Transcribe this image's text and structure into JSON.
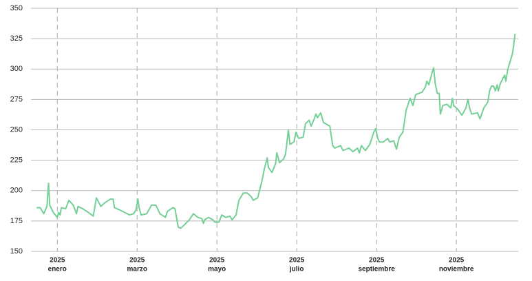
{
  "chart_data": {
    "type": "line",
    "color": "#74cf97",
    "grid": true,
    "xlim": [
      0.34,
      12.55
    ],
    "ylim": [
      150,
      350
    ],
    "yticks": [
      150,
      175,
      200,
      225,
      250,
      275,
      300,
      325,
      350
    ],
    "xticks": [
      {
        "value": 1,
        "label": [
          "2025",
          "enero"
        ]
      },
      {
        "value": 3,
        "label": [
          "2025",
          "marzo"
        ]
      },
      {
        "value": 5,
        "label": [
          "2025",
          "mayo"
        ]
      },
      {
        "value": 7,
        "label": [
          "2025",
          "julio"
        ]
      },
      {
        "value": 9,
        "label": [
          "2025",
          "septiembre"
        ]
      },
      {
        "value": 11,
        "label": [
          "2025",
          "noviembre"
        ]
      }
    ],
    "x": [
      0.48,
      0.57,
      0.66,
      0.74,
      0.78,
      0.81,
      0.9,
      1.0,
      1.03,
      1.07,
      1.1,
      1.21,
      1.29,
      1.4,
      1.48,
      1.52,
      1.64,
      1.78,
      1.9,
      1.98,
      2.09,
      2.19,
      2.33,
      2.4,
      2.43,
      2.57,
      2.69,
      2.81,
      2.91,
      2.97,
      3.02,
      3.05,
      3.1,
      3.24,
      3.36,
      3.47,
      3.57,
      3.71,
      3.76,
      3.9,
      3.95,
      4.03,
      4.09,
      4.19,
      4.31,
      4.41,
      4.52,
      4.62,
      4.66,
      4.69,
      4.79,
      4.9,
      4.95,
      5.05,
      5.12,
      5.22,
      5.33,
      5.38,
      5.48,
      5.55,
      5.66,
      5.76,
      5.86,
      5.91,
      6.02,
      6.12,
      6.19,
      6.26,
      6.29,
      6.38,
      6.47,
      6.5,
      6.57,
      6.67,
      6.72,
      6.79,
      6.83,
      6.93,
      6.98,
      7.05,
      7.16,
      7.22,
      7.31,
      7.36,
      7.45,
      7.48,
      7.52,
      7.6,
      7.67,
      7.83,
      7.9,
      7.95,
      8.1,
      8.16,
      8.31,
      8.41,
      8.52,
      8.57,
      8.62,
      8.72,
      8.83,
      8.93,
      8.98,
      9.03,
      9.07,
      9.17,
      9.28,
      9.33,
      9.43,
      9.5,
      9.57,
      9.66,
      9.74,
      9.84,
      9.91,
      9.98,
      10.14,
      10.22,
      10.26,
      10.31,
      10.4,
      10.43,
      10.47,
      10.52,
      10.57,
      10.6,
      10.66,
      10.76,
      10.86,
      10.9,
      10.93,
      11.03,
      11.14,
      11.24,
      11.29,
      11.33,
      11.38,
      11.53,
      11.59,
      11.69,
      11.79,
      11.83,
      11.88,
      11.93,
      11.98,
      12.02,
      12.05,
      12.1,
      12.21,
      12.24,
      12.29,
      12.4,
      12.43,
      12.47
    ],
    "values": [
      186,
      186,
      181,
      187,
      206,
      188,
      182,
      178,
      182,
      180,
      186,
      185,
      192,
      188,
      181,
      187,
      185,
      182,
      179,
      194,
      187,
      190,
      193,
      193,
      186,
      184,
      182,
      180,
      181,
      184,
      193,
      186,
      180,
      181,
      188,
      188,
      181,
      178,
      183,
      186,
      185,
      170,
      169,
      172,
      176,
      181,
      178,
      177,
      173,
      176,
      178,
      176,
      174,
      174,
      180,
      178,
      179,
      176,
      180,
      192,
      198,
      198,
      195,
      192,
      194,
      207,
      218,
      227,
      219,
      215,
      222,
      231,
      223,
      226,
      230,
      250,
      238,
      240,
      248,
      243,
      244,
      255,
      258,
      253,
      260,
      263,
      260,
      264,
      256,
      253,
      237,
      235,
      237,
      233,
      235,
      232,
      235,
      231,
      237,
      233,
      238,
      248,
      251,
      243,
      240,
      240,
      243,
      240,
      241,
      234,
      244,
      248,
      266,
      276,
      270,
      279,
      281,
      285,
      290,
      287,
      298,
      301,
      288,
      280,
      280,
      263,
      270,
      271,
      268,
      276,
      270,
      267,
      262,
      268,
      275,
      268,
      263,
      264,
      259,
      268,
      273,
      282,
      286,
      286,
      282,
      287,
      282,
      288,
      295,
      290,
      300,
      312,
      318,
      329
    ]
  }
}
